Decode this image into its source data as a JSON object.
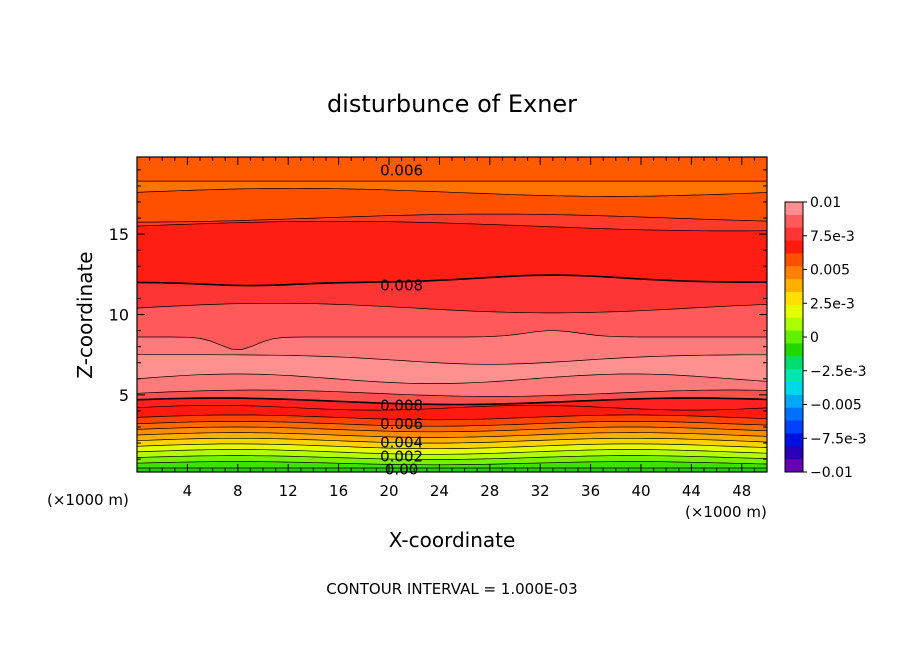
{
  "chart_data": {
    "type": "heatmap",
    "subtype": "filled-contour",
    "title": "disturbunce of Exner",
    "xlabel": "X-coordinate",
    "ylabel": "Z-coordinate",
    "x_unit_label": "(×1000 m)",
    "y_unit_label": "(×1000 m)",
    "xlim": [
      0,
      50
    ],
    "ylim": [
      0.2,
      19.8
    ],
    "x_ticks": [
      4,
      8,
      12,
      16,
      20,
      24,
      28,
      32,
      36,
      40,
      44,
      48
    ],
    "y_ticks": [
      5,
      10,
      15
    ],
    "footer": "CONTOUR INTERVAL = 1.000E-03",
    "colorbar": {
      "range": [
        -0.01,
        0.01
      ],
      "tick_values": [
        0.01,
        0.0075,
        0.005,
        0.0025,
        0,
        -0.0025,
        -0.005,
        -0.0075,
        -0.01
      ],
      "tick_labels": [
        "0.01",
        "7.5e-3",
        "0.005",
        "2.5e-3",
        "0",
        "−2.5e-3",
        "−0.005",
        "−7.5e-3",
        "−0.01"
      ],
      "colors": [
        "#ff8f8f",
        "#ff5a5a",
        "#ff3434",
        "#ff1a10",
        "#ff5000",
        "#ff8000",
        "#ffaf00",
        "#ffe000",
        "#e6ff00",
        "#aaff00",
        "#60f000",
        "#20d800",
        "#00dd70",
        "#00e8b0",
        "#00d8e8",
        "#00a8f8",
        "#0070ff",
        "#0040ff",
        "#0010e0",
        "#2800b8",
        "#6600b0"
      ]
    },
    "contour_labels": [
      {
        "text": "0.006",
        "x": 21,
        "z": 18.95
      },
      {
        "text": "0.008",
        "x": 21,
        "z": 11.8
      },
      {
        "text": "0.008",
        "x": 21,
        "z": 4.35
      },
      {
        "text": "0.006",
        "x": 21,
        "z": 3.2
      },
      {
        "text": "0.004",
        "x": 21,
        "z": 2.05
      },
      {
        "text": "0.002",
        "x": 21,
        "z": 1.15
      },
      {
        "text": "0.00",
        "x": 21,
        "z": 0.35
      }
    ]
  }
}
